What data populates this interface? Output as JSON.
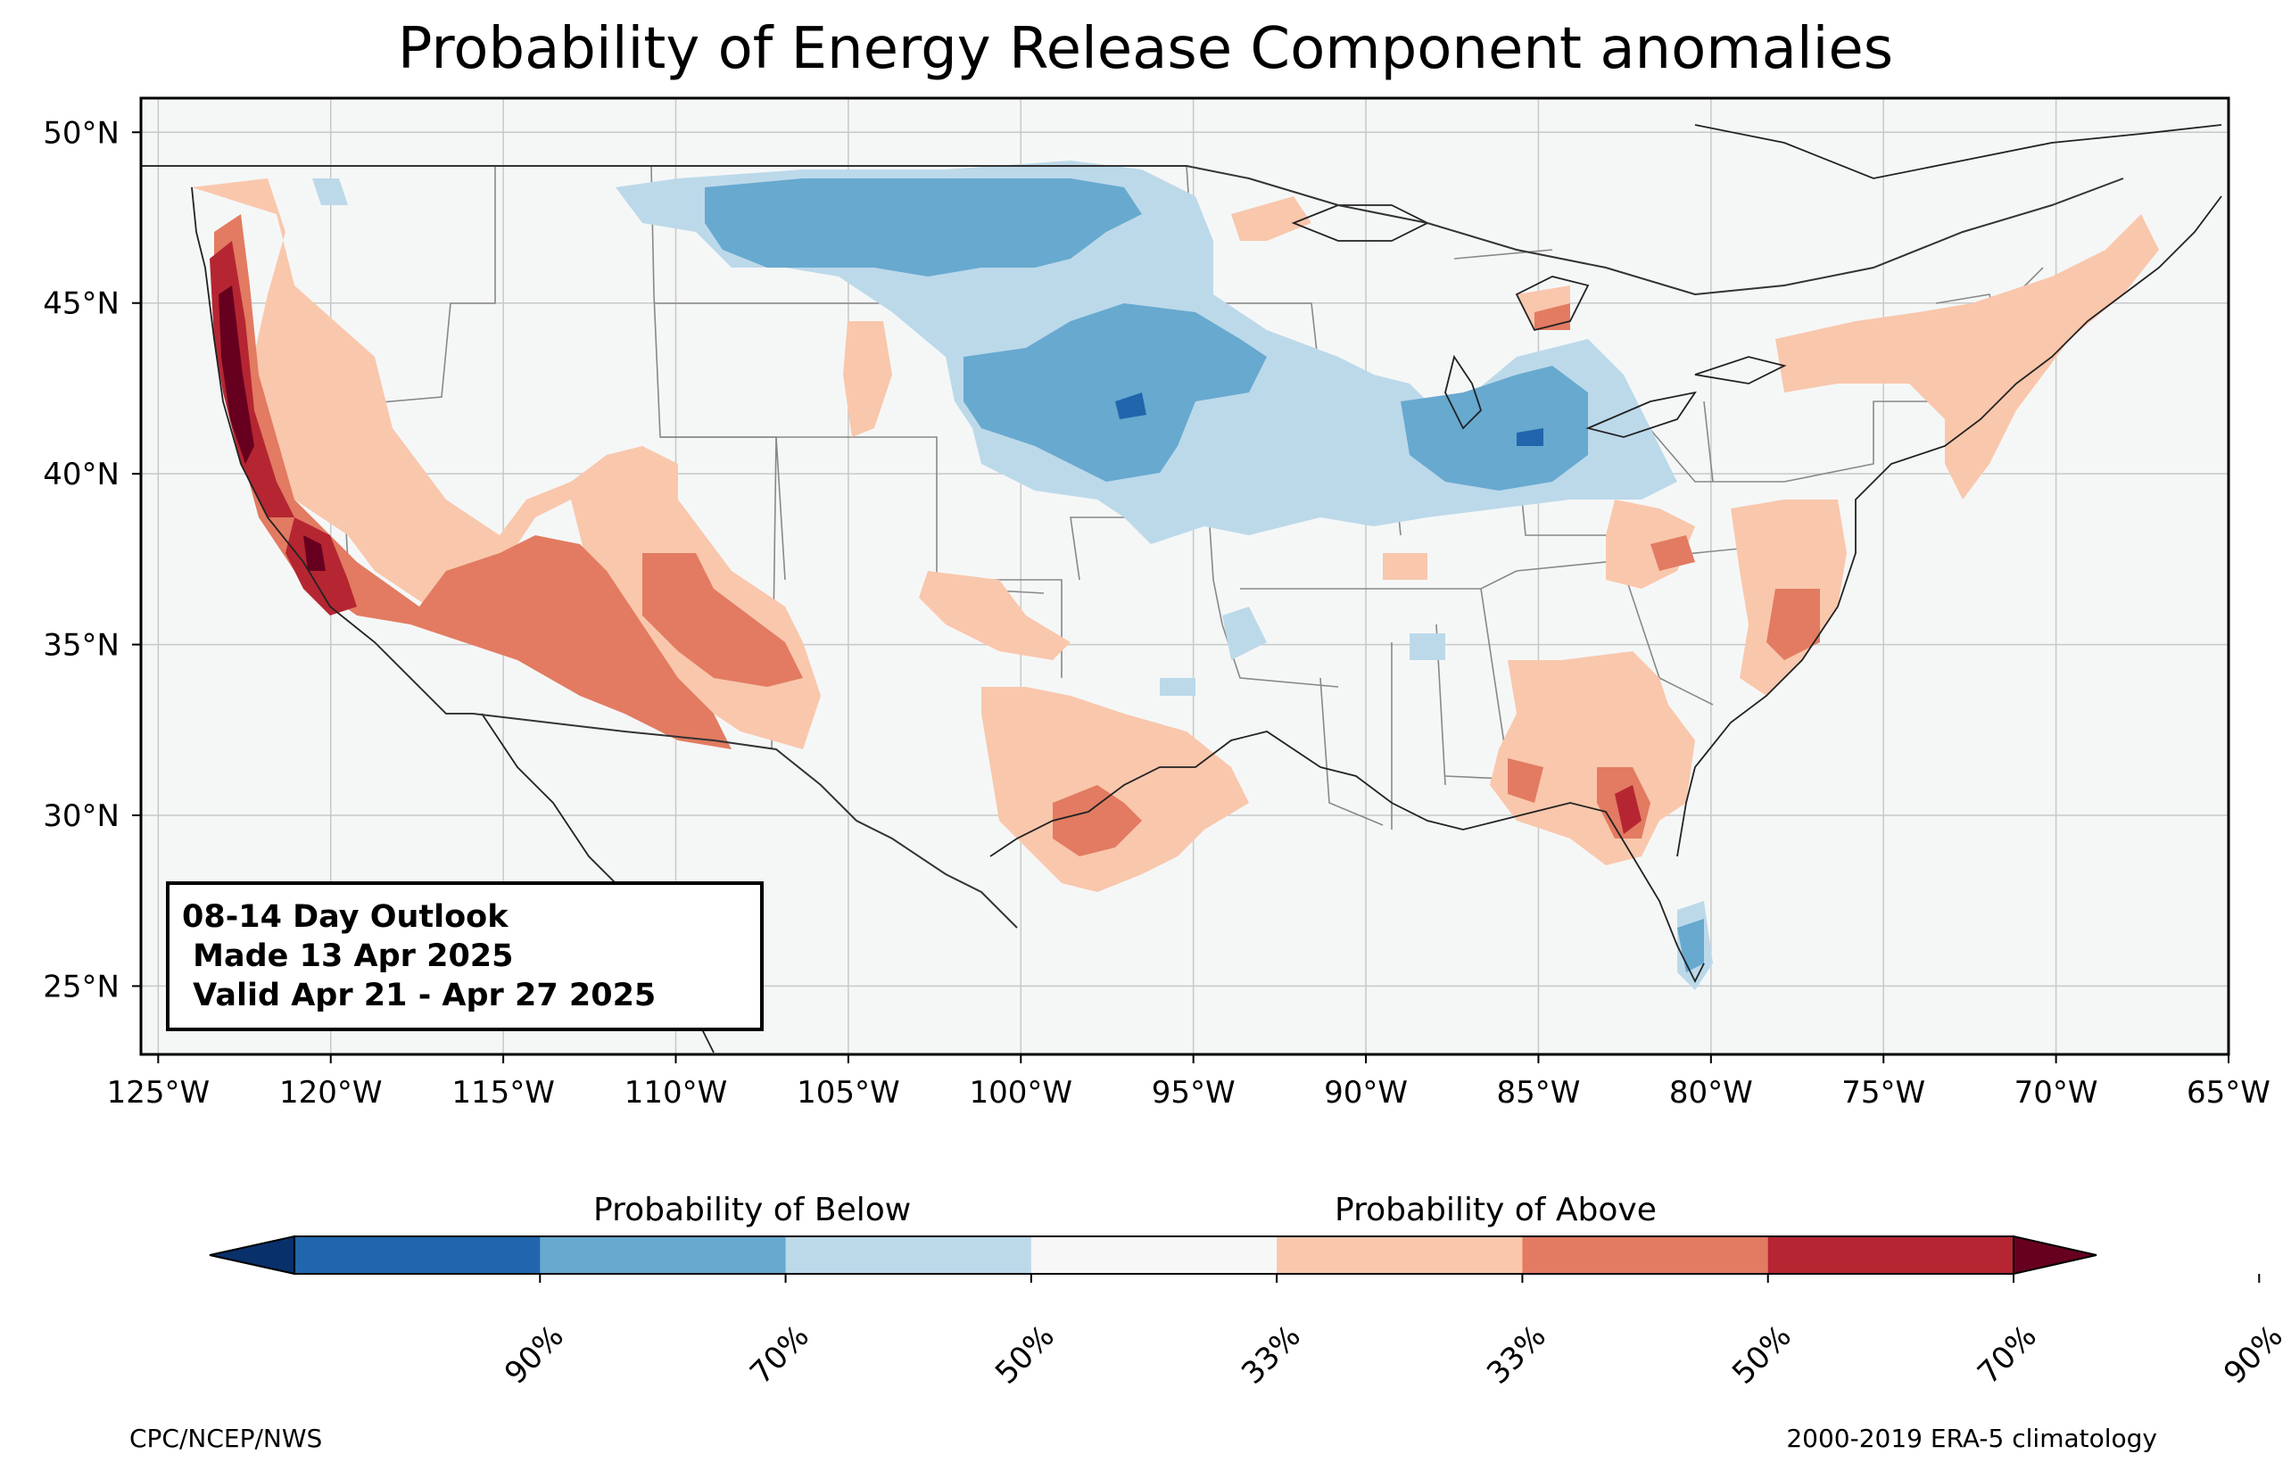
{
  "title": "Probability of Energy Release Component anomalies",
  "info_box": {
    "line1": "08-14 Day Outlook",
    "line2": " Made 13 Apr 2025",
    "line3": " Valid Apr 21 - Apr 27 2025"
  },
  "map": {
    "lat_ticks": [
      "50°N",
      "45°N",
      "40°N",
      "35°N",
      "30°N",
      "25°N"
    ],
    "lon_ticks": [
      "125°W",
      "120°W",
      "115°W",
      "110°W",
      "105°W",
      "100°W",
      "95°W",
      "90°W",
      "85°W",
      "80°W",
      "75°W",
      "70°W",
      "65°W"
    ],
    "lon_range": [
      -125.5,
      -65
    ],
    "lat_range": [
      23,
      51
    ]
  },
  "colorbar": {
    "below_label": "Probability of Below",
    "above_label": "Probability of Above",
    "colors": [
      "#08306b",
      "#2166ac",
      "#67a9cf",
      "#bcd9ea",
      "#f7f7f7",
      "#f9c7ac",
      "#e27b61",
      "#b52632",
      "#67001f"
    ],
    "tick_labels": [
      "90%",
      "70%",
      "50%",
      "33%",
      "33%",
      "50%",
      "70%",
      "90%"
    ]
  },
  "footer": {
    "left": "CPC/NCEP/NWS",
    "right": "2000-2019 ERA-5 climatology"
  }
}
